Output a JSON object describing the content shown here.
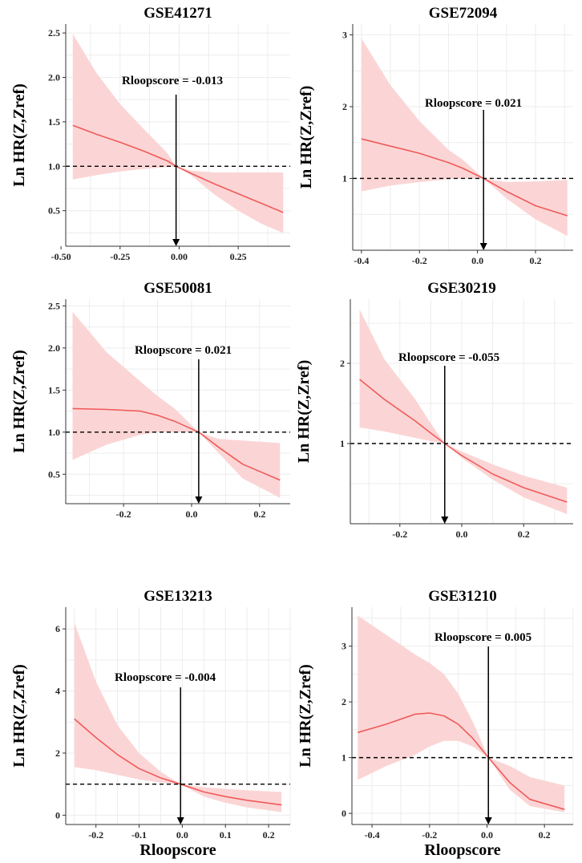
{
  "colors": {
    "curve": "#f05a5a",
    "band": "#fbd5d5",
    "grid": "#ececec",
    "reference_line": "#000000",
    "arrow": "#000000"
  },
  "chart_data": [
    {
      "type": "line",
      "title": "GSE41271",
      "ylabel": "Ln HR(Z,Zref)",
      "xlabel": "",
      "xlim": [
        -0.48,
        0.47
      ],
      "ylim": [
        0.1,
        2.6
      ],
      "xticks": [
        -0.5,
        -0.25,
        0.0,
        0.25
      ],
      "xtick_labels": [
        "-0.50",
        "-0.25",
        "0.00",
        "0.25"
      ],
      "yticks": [
        0.5,
        1.0,
        1.5,
        2.0,
        2.5
      ],
      "ytick_labels": [
        "0.5",
        "1.0",
        "1.5",
        "2.0",
        "2.5"
      ],
      "reference_y": 1.0,
      "cutoff_x": -0.013,
      "annotation": "Rloopscore = -0.013",
      "series": [
        {
          "x": [
            -0.45,
            -0.35,
            -0.25,
            -0.15,
            -0.05,
            -0.013,
            0.05,
            0.15,
            0.25,
            0.35,
            0.44
          ],
          "y": [
            1.46,
            1.36,
            1.27,
            1.17,
            1.06,
            1.0,
            0.92,
            0.8,
            0.69,
            0.58,
            0.48
          ],
          "lower": [
            0.85,
            0.9,
            0.94,
            0.97,
            0.99,
            1.0,
            0.9,
            0.68,
            0.5,
            0.35,
            0.25
          ],
          "upper": [
            2.49,
            2.05,
            1.7,
            1.42,
            1.15,
            1.0,
            0.95,
            0.93,
            0.93,
            0.93,
            0.93
          ]
        }
      ]
    },
    {
      "type": "line",
      "title": "GSE72094",
      "ylabel": "Ln HR(Z,Zref)",
      "xlabel": "",
      "xlim": [
        -0.43,
        0.33
      ],
      "ylim": [
        0.0,
        3.15
      ],
      "xticks": [
        -0.4,
        -0.2,
        0.0,
        0.2
      ],
      "xtick_labels": [
        "-0.4",
        "-0.2",
        "0.0",
        "0.2"
      ],
      "yticks": [
        1,
        2,
        3
      ],
      "ytick_labels": [
        "1",
        "2",
        "3"
      ],
      "reference_y": 1.0,
      "cutoff_x": 0.021,
      "annotation": "Rloopscore = 0.021",
      "series": [
        {
          "x": [
            -0.4,
            -0.3,
            -0.2,
            -0.1,
            -0.05,
            0.021,
            0.1,
            0.2,
            0.31
          ],
          "y": [
            1.55,
            1.45,
            1.35,
            1.22,
            1.14,
            1.0,
            0.82,
            0.62,
            0.48
          ],
          "lower": [
            0.82,
            0.9,
            0.95,
            0.99,
            1.0,
            1.0,
            0.72,
            0.43,
            0.2
          ],
          "upper": [
            2.95,
            2.3,
            1.8,
            1.4,
            1.26,
            1.0,
            0.95,
            0.96,
            0.98
          ]
        }
      ]
    },
    {
      "type": "line",
      "title": "GSE50081",
      "ylabel": "Ln HR(Z,Zref)",
      "xlabel": "",
      "xlim": [
        -0.37,
        0.29
      ],
      "ylim": [
        0.15,
        2.58
      ],
      "xticks": [
        -0.2,
        0.0,
        0.2
      ],
      "xtick_labels": [
        "-0.2",
        "0.0",
        "0.2"
      ],
      "yticks": [
        0.5,
        1.0,
        1.5,
        2.0,
        2.5
      ],
      "ytick_labels": [
        "0.5",
        "1.0",
        "1.5",
        "2.0",
        "2.5"
      ],
      "reference_y": 1.0,
      "cutoff_x": 0.021,
      "annotation": "Rloopscore = 0.021",
      "series": [
        {
          "x": [
            -0.35,
            -0.25,
            -0.15,
            -0.1,
            -0.05,
            0.021,
            0.08,
            0.15,
            0.26
          ],
          "y": [
            1.28,
            1.27,
            1.25,
            1.2,
            1.13,
            1.0,
            0.82,
            0.62,
            0.43
          ],
          "lower": [
            0.67,
            0.85,
            0.97,
            1.0,
            1.0,
            1.0,
            0.75,
            0.45,
            0.22
          ],
          "upper": [
            2.43,
            1.95,
            1.6,
            1.43,
            1.28,
            1.0,
            0.92,
            0.9,
            0.87
          ]
        }
      ]
    },
    {
      "type": "line",
      "title": "GSE30219",
      "ylabel": "Ln HR(Z,Zref)",
      "xlabel": "",
      "xlim": [
        -0.36,
        0.36
      ],
      "ylim": [
        0.0,
        2.8
      ],
      "xticks": [
        -0.2,
        0.0,
        0.2
      ],
      "xtick_labels": [
        "-0.2",
        "0.0",
        "0.2"
      ],
      "yticks": [
        1,
        2
      ],
      "ytick_labels": [
        "1",
        "2"
      ],
      "reference_y": 1.0,
      "cutoff_x": -0.055,
      "annotation": "Rloopscore = -0.055",
      "series": [
        {
          "x": [
            -0.33,
            -0.25,
            -0.15,
            -0.1,
            -0.055,
            0.0,
            0.1,
            0.2,
            0.34
          ],
          "y": [
            1.8,
            1.55,
            1.28,
            1.13,
            1.0,
            0.85,
            0.62,
            0.45,
            0.27
          ],
          "lower": [
            1.2,
            1.15,
            1.07,
            1.03,
            1.0,
            0.82,
            0.55,
            0.33,
            0.12
          ],
          "upper": [
            2.67,
            2.05,
            1.55,
            1.25,
            1.0,
            0.9,
            0.74,
            0.6,
            0.45
          ]
        }
      ]
    },
    {
      "type": "line",
      "title": "GSE13213",
      "ylabel": "Ln HR(Z,Zref)",
      "xlabel": "Rloopscore",
      "xlim": [
        -0.27,
        0.25
      ],
      "ylim": [
        -0.3,
        6.7
      ],
      "xticks": [
        -0.2,
        -0.1,
        0.0,
        0.1,
        0.2
      ],
      "xtick_labels": [
        "-0.2",
        "-0.1",
        "0.0",
        "0.1",
        "0.2"
      ],
      "yticks": [
        0,
        2,
        4,
        6
      ],
      "ytick_labels": [
        "0",
        "2",
        "4",
        "6"
      ],
      "reference_y": 1.0,
      "cutoff_x": -0.004,
      "annotation": "Rloopscore = -0.004",
      "series": [
        {
          "x": [
            -0.25,
            -0.2,
            -0.15,
            -0.1,
            -0.05,
            -0.004,
            0.05,
            0.1,
            0.15,
            0.23
          ],
          "y": [
            3.1,
            2.5,
            1.95,
            1.5,
            1.2,
            1.0,
            0.75,
            0.6,
            0.48,
            0.33
          ],
          "lower": [
            1.55,
            1.45,
            1.3,
            1.15,
            1.05,
            1.0,
            0.6,
            0.4,
            0.25,
            0.1
          ],
          "upper": [
            6.2,
            4.3,
            2.9,
            2.0,
            1.4,
            1.0,
            0.9,
            0.85,
            0.8,
            0.75
          ]
        }
      ]
    },
    {
      "type": "line",
      "title": "GSE31210",
      "ylabel": "Ln HR(Z,Zref)",
      "xlabel": "Rloopscore",
      "xlim": [
        -0.47,
        0.3
      ],
      "ylim": [
        -0.2,
        3.7
      ],
      "xticks": [
        -0.4,
        -0.2,
        0.0,
        0.2
      ],
      "xtick_labels": [
        "-0.4",
        "-0.2",
        "0.0",
        "0.2"
      ],
      "yticks": [
        0,
        1,
        2,
        3
      ],
      "ytick_labels": [
        "0",
        "1",
        "2",
        "3"
      ],
      "reference_y": 1.0,
      "cutoff_x": 0.005,
      "annotation": "Rloopscore = 0.005",
      "series": [
        {
          "x": [
            -0.45,
            -0.35,
            -0.25,
            -0.2,
            -0.15,
            -0.1,
            -0.05,
            0.005,
            0.08,
            0.15,
            0.27
          ],
          "y": [
            1.45,
            1.6,
            1.78,
            1.8,
            1.75,
            1.6,
            1.35,
            1.0,
            0.55,
            0.25,
            0.07
          ],
          "lower": [
            0.6,
            0.85,
            1.05,
            1.2,
            1.3,
            1.3,
            1.2,
            1.0,
            0.42,
            0.13,
            0.02
          ],
          "upper": [
            3.55,
            3.2,
            2.85,
            2.7,
            2.5,
            2.15,
            1.65,
            1.0,
            0.85,
            0.65,
            0.5
          ]
        }
      ]
    }
  ]
}
